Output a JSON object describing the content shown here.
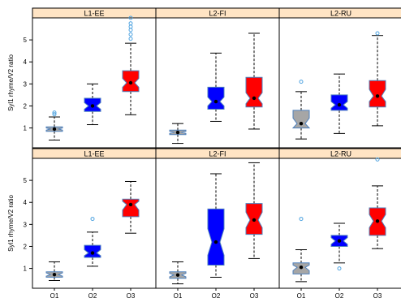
{
  "chart_data": {
    "type": "boxplot",
    "layout": "2 rows x 3 panels",
    "colors": {
      "Q1": "#a6a6a6",
      "Q2": "#0000ff",
      "Q3": "#ff0000",
      "box_border": "#4f81bd",
      "strip": "#ffe4c4",
      "outlier": "#4fa3e0",
      "median": "#000000"
    },
    "categories": [
      "Q1",
      "Q2",
      "Q3"
    ],
    "yticks": [
      1,
      2,
      3,
      4,
      5
    ],
    "ylim": [
      0.1,
      6.0
    ],
    "rows": [
      {
        "ylabel": "Syl1 rhyme/V2 ratio",
        "panels": [
          {
            "title": "L1-EE",
            "boxes": [
              {
                "cat": "Q1",
                "whisker_low": 0.45,
                "q1": 0.85,
                "median": 0.95,
                "q3": 1.05,
                "whisker_high": 1.5,
                "notch_low": 0.9,
                "notch_high": 1.0,
                "outliers": [
                  1.62,
                  1.7
                ]
              },
              {
                "cat": "Q2",
                "whisker_low": 1.15,
                "q1": 1.75,
                "median": 2.0,
                "q3": 2.35,
                "whisker_high": 3.0,
                "notch_low": 1.85,
                "notch_high": 2.15,
                "outliers": []
              },
              {
                "cat": "Q3",
                "whisker_low": 1.6,
                "q1": 2.65,
                "median": 3.05,
                "q3": 3.6,
                "whisker_high": 4.85,
                "notch_low": 2.85,
                "notch_high": 3.25,
                "outliers": [
                  5.05,
                  5.25,
                  5.45,
                  5.6,
                  5.75,
                  6.0
                ]
              }
            ]
          },
          {
            "title": "L2-FI",
            "boxes": [
              {
                "cat": "Q1",
                "whisker_low": 0.3,
                "q1": 0.7,
                "median": 0.8,
                "q3": 0.9,
                "whisker_high": 1.2,
                "notch_low": 0.75,
                "notch_high": 0.85,
                "outliers": []
              },
              {
                "cat": "Q2",
                "whisker_low": 1.3,
                "q1": 1.85,
                "median": 2.2,
                "q3": 2.85,
                "whisker_high": 4.4,
                "notch_low": 2.0,
                "notch_high": 2.4,
                "outliers": []
              },
              {
                "cat": "Q3",
                "whisker_low": 0.95,
                "q1": 1.95,
                "median": 2.35,
                "q3": 3.3,
                "whisker_high": 5.3,
                "notch_low": 2.1,
                "notch_high": 2.6,
                "outliers": []
              }
            ]
          },
          {
            "title": "L2-RU",
            "boxes": [
              {
                "cat": "Q1",
                "whisker_low": 0.5,
                "q1": 1.0,
                "median": 1.2,
                "q3": 1.8,
                "whisker_high": 2.65,
                "notch_low": 1.0,
                "notch_high": 1.45,
                "outliers": [
                  3.1
                ]
              },
              {
                "cat": "Q2",
                "whisker_low": 0.75,
                "q1": 1.8,
                "median": 2.05,
                "q3": 2.5,
                "whisker_high": 3.45,
                "notch_low": 1.9,
                "notch_high": 2.2,
                "outliers": []
              },
              {
                "cat": "Q3",
                "whisker_low": 1.1,
                "q1": 1.95,
                "median": 2.45,
                "q3": 3.15,
                "whisker_high": 5.2,
                "notch_low": 2.2,
                "notch_high": 2.75,
                "outliers": [
                  5.3
                ]
              }
            ]
          }
        ]
      },
      {
        "ylabel": "Syl1 rhyme/V2 ratio",
        "panels": [
          {
            "title": "L1-EE",
            "boxes": [
              {
                "cat": "Q1",
                "whisker_low": 0.45,
                "q1": 0.6,
                "median": 0.72,
                "q3": 0.85,
                "whisker_high": 1.3,
                "notch_low": 0.65,
                "notch_high": 0.8,
                "outliers": []
              },
              {
                "cat": "Q2",
                "whisker_low": 1.1,
                "q1": 1.5,
                "median": 1.7,
                "q3": 2.05,
                "whisker_high": 2.65,
                "notch_low": 1.58,
                "notch_high": 1.85,
                "outliers": [
                  3.25
                ]
              },
              {
                "cat": "Q3",
                "whisker_low": 2.6,
                "q1": 3.35,
                "median": 3.9,
                "q3": 4.15,
                "whisker_high": 4.95,
                "notch_low": 3.65,
                "notch_high": 4.05,
                "outliers": []
              }
            ]
          },
          {
            "title": "L2-FI",
            "boxes": [
              {
                "cat": "Q1",
                "whisker_low": 0.3,
                "q1": 0.55,
                "median": 0.7,
                "q3": 0.85,
                "whisker_high": 1.3,
                "notch_low": 0.62,
                "notch_high": 0.78,
                "outliers": []
              },
              {
                "cat": "Q2",
                "whisker_low": 0.6,
                "q1": 1.15,
                "median": 2.2,
                "q3": 3.7,
                "whisker_high": 5.3,
                "notch_low": 1.6,
                "notch_high": 2.8,
                "outliers": []
              },
              {
                "cat": "Q3",
                "whisker_low": 1.45,
                "q1": 2.55,
                "median": 3.2,
                "q3": 3.95,
                "whisker_high": 5.8,
                "notch_low": 2.85,
                "notch_high": 3.55,
                "outliers": []
              }
            ]
          },
          {
            "title": "L2-RU",
            "boxes": [
              {
                "cat": "Q1",
                "whisker_low": 0.4,
                "q1": 0.75,
                "median": 1.05,
                "q3": 1.25,
                "whisker_high": 1.85,
                "notch_low": 0.9,
                "notch_high": 1.15,
                "outliers": [
                  3.25
                ]
              },
              {
                "cat": "Q2",
                "whisker_low": 1.25,
                "q1": 2.0,
                "median": 2.25,
                "q3": 2.5,
                "whisker_high": 3.05,
                "notch_low": 2.1,
                "notch_high": 2.4,
                "outliers": [
                  1.0
                ]
              },
              {
                "cat": "Q3",
                "whisker_low": 1.9,
                "q1": 2.5,
                "median": 3.15,
                "q3": 3.75,
                "whisker_high": 4.75,
                "notch_low": 2.85,
                "notch_high": 3.45,
                "outliers": [
                  5.95
                ]
              }
            ]
          }
        ]
      }
    ]
  }
}
